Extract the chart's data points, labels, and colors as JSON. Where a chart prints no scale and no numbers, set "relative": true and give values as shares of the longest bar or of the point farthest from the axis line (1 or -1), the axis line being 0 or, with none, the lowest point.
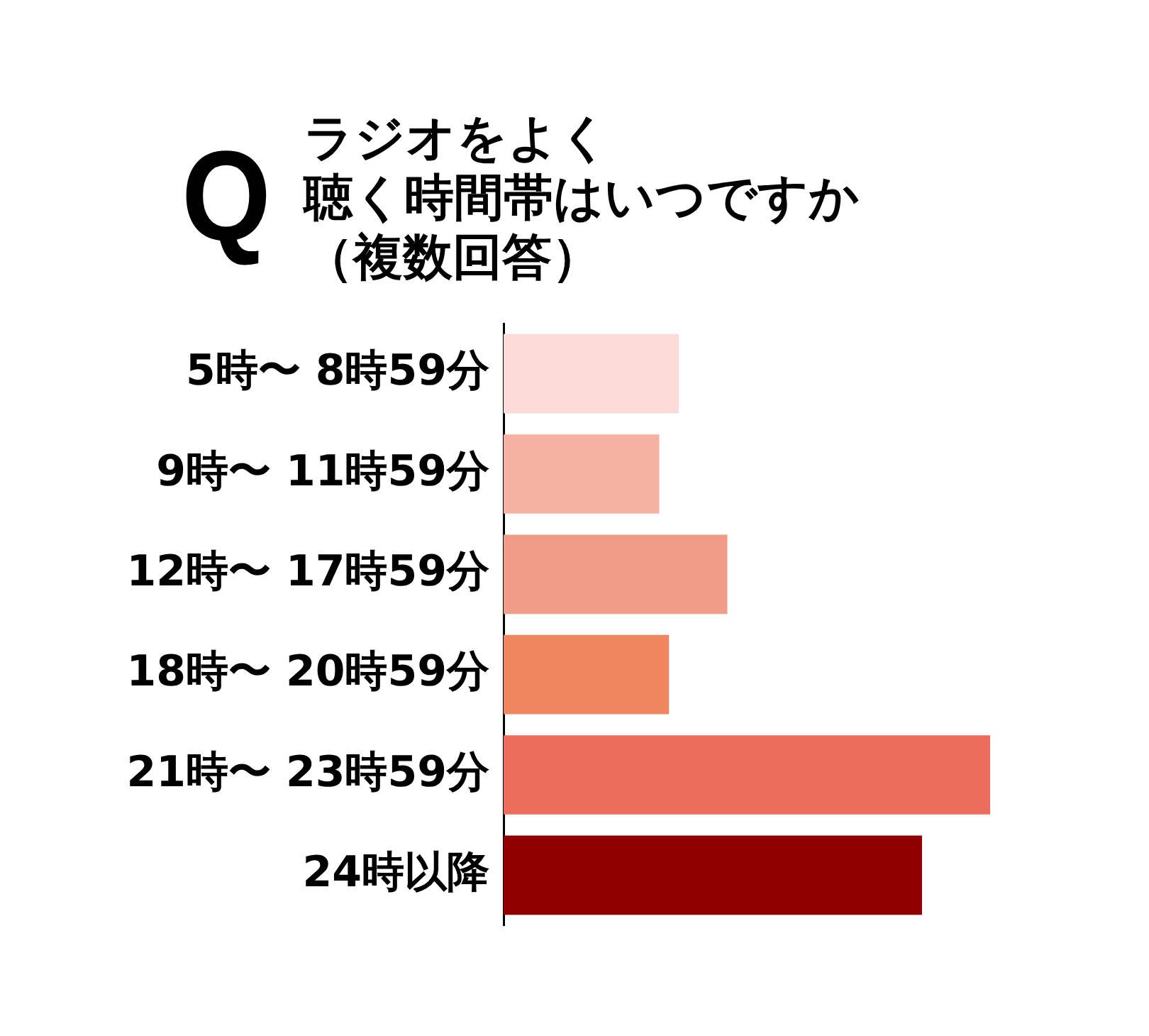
{
  "chart_data": {
    "type": "bar",
    "orientation": "horizontal",
    "relative": true,
    "title": "ラジオをよく聴く時間帯はいつですか（複数回答）",
    "annotations": [
      "Q"
    ],
    "categories": [
      "5時〜 8時59分",
      "9時〜 11時59分",
      "12時〜 17時59分",
      "18時〜 20時59分",
      "21時〜 23時59分",
      "24時以降"
    ],
    "values": [
      0.36,
      0.32,
      0.46,
      0.34,
      1,
      0.86
    ],
    "colors": [
      "#fadbd8",
      "#f5b1a2",
      "#f19c88",
      "#f0865f",
      "#eb6d5b",
      "#900000"
    ]
  }
}
